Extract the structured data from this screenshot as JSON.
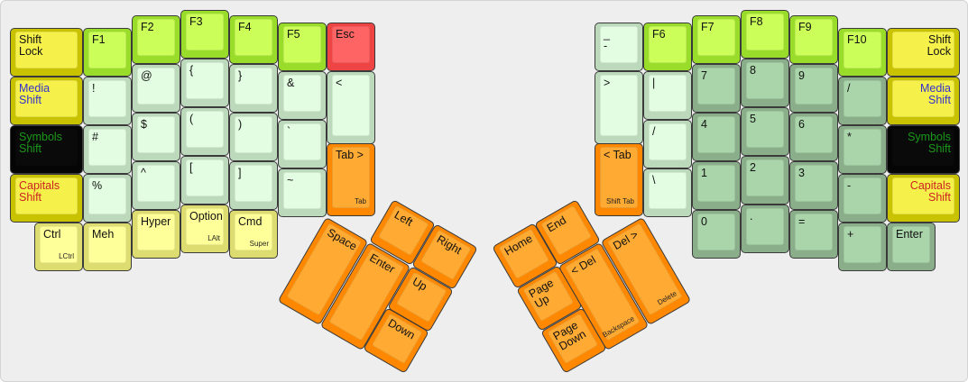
{
  "colors": {
    "modifier": "#f5f04a",
    "function": "#ccfe5a",
    "symbol": "#e2fde2",
    "number": "#aad4aa",
    "navigation": "#ffaa33",
    "escape": "#ff6464",
    "light_modifier": "#ffff99",
    "black": "#0a0a0a",
    "media_legend": "#3333cc",
    "symbols_legend": "#1a9a1a",
    "capitals_legend": "#cc2222"
  },
  "keys": [
    {
      "label": "Shift\nLock",
      "type": "mod"
    },
    {
      "label": "Media\nShift",
      "type": "mod",
      "legend": "media_legend"
    },
    {
      "label": "Symbols\nShift",
      "type": "black",
      "legend": "symbols_legend"
    },
    {
      "label": "Capitals\nShift",
      "type": "mod",
      "legend": "capitals_legend"
    },
    {
      "label": "Ctrl",
      "sub": "LCtrl",
      "type": "lmod"
    },
    {
      "label": "F1",
      "type": "fkey"
    },
    {
      "label": "!",
      "type": "sym"
    },
    {
      "label": "#",
      "type": "sym"
    },
    {
      "label": "%",
      "type": "sym"
    },
    {
      "label": "Meh",
      "type": "lmod"
    },
    {
      "label": "F2",
      "type": "fkey"
    },
    {
      "label": "@",
      "type": "sym"
    },
    {
      "label": "$",
      "type": "sym"
    },
    {
      "label": "^",
      "type": "sym"
    },
    {
      "label": "Hyper",
      "type": "lmod"
    },
    {
      "label": "F3",
      "type": "fkey"
    },
    {
      "label": "{",
      "type": "sym"
    },
    {
      "label": "(",
      "type": "sym"
    },
    {
      "label": "[",
      "type": "sym"
    },
    {
      "label": "Option",
      "sub": "LAlt",
      "type": "lmod"
    },
    {
      "label": "F4",
      "type": "fkey"
    },
    {
      "label": "}",
      "type": "sym"
    },
    {
      "label": ")",
      "type": "sym"
    },
    {
      "label": "]",
      "type": "sym"
    },
    {
      "label": "Cmd",
      "sub": "Super",
      "type": "lmod"
    },
    {
      "label": "F5",
      "type": "fkey"
    },
    {
      "label": "&",
      "type": "sym"
    },
    {
      "label": "`",
      "type": "sym"
    },
    {
      "label": "~",
      "type": "sym"
    },
    {
      "label": "Esc",
      "type": "esc"
    },
    {
      "label": "<",
      "type": "sym"
    },
    {
      "label": "Tab >",
      "sub": "Tab",
      "type": "nav"
    },
    {
      "label": "Space",
      "type": "nav"
    },
    {
      "label": "Enter",
      "type": "nav"
    },
    {
      "label": "Left",
      "type": "nav"
    },
    {
      "label": "Right",
      "type": "nav"
    },
    {
      "label": "Up",
      "type": "nav"
    },
    {
      "label": "Down",
      "type": "nav"
    },
    {
      "label": "_\n-",
      "type": "sym"
    },
    {
      "label": ">",
      "type": "sym"
    },
    {
      "label": "< Tab",
      "sub": "Shift Tab",
      "type": "nav"
    },
    {
      "label": "F6",
      "type": "fkey"
    },
    {
      "label": "|",
      "type": "sym"
    },
    {
      "label": "/",
      "type": "sym"
    },
    {
      "label": "\\",
      "type": "sym"
    },
    {
      "label": "F7",
      "type": "fkey"
    },
    {
      "label": "7",
      "type": "num"
    },
    {
      "label": "4",
      "type": "num"
    },
    {
      "label": "1",
      "type": "num"
    },
    {
      "label": "0",
      "type": "num"
    },
    {
      "label": "F8",
      "type": "fkey"
    },
    {
      "label": "8",
      "type": "num"
    },
    {
      "label": "5",
      "type": "num"
    },
    {
      "label": "2",
      "type": "num"
    },
    {
      "label": ".",
      "type": "num"
    },
    {
      "label": "F9",
      "type": "fkey"
    },
    {
      "label": "9",
      "type": "num"
    },
    {
      "label": "6",
      "type": "num"
    },
    {
      "label": "3",
      "type": "num"
    },
    {
      "label": "=",
      "type": "num"
    },
    {
      "label": "F10",
      "type": "fkey"
    },
    {
      "label": "/",
      "type": "num"
    },
    {
      "label": "*",
      "type": "num"
    },
    {
      "label": "-",
      "type": "num"
    },
    {
      "label": "+",
      "type": "num"
    },
    {
      "label": "Shift\nLock",
      "type": "mod",
      "align": "right"
    },
    {
      "label": "Media\nShift",
      "type": "mod",
      "legend": "media_legend",
      "align": "right"
    },
    {
      "label": "Symbols\nShift",
      "type": "black",
      "legend": "symbols_legend",
      "align": "right"
    },
    {
      "label": "Capitals\nShift",
      "type": "mod",
      "legend": "capitals_legend",
      "align": "right"
    },
    {
      "label": "Enter",
      "type": "num"
    },
    {
      "label": "Home",
      "type": "nav"
    },
    {
      "label": "End",
      "type": "nav"
    },
    {
      "label": "Page\nUp",
      "type": "nav"
    },
    {
      "label": "Page\nDown",
      "type": "nav"
    },
    {
      "label": "< Del",
      "sub": "Backspace",
      "type": "nav"
    },
    {
      "label": "Del >",
      "sub": "Delete",
      "type": "nav"
    }
  ]
}
